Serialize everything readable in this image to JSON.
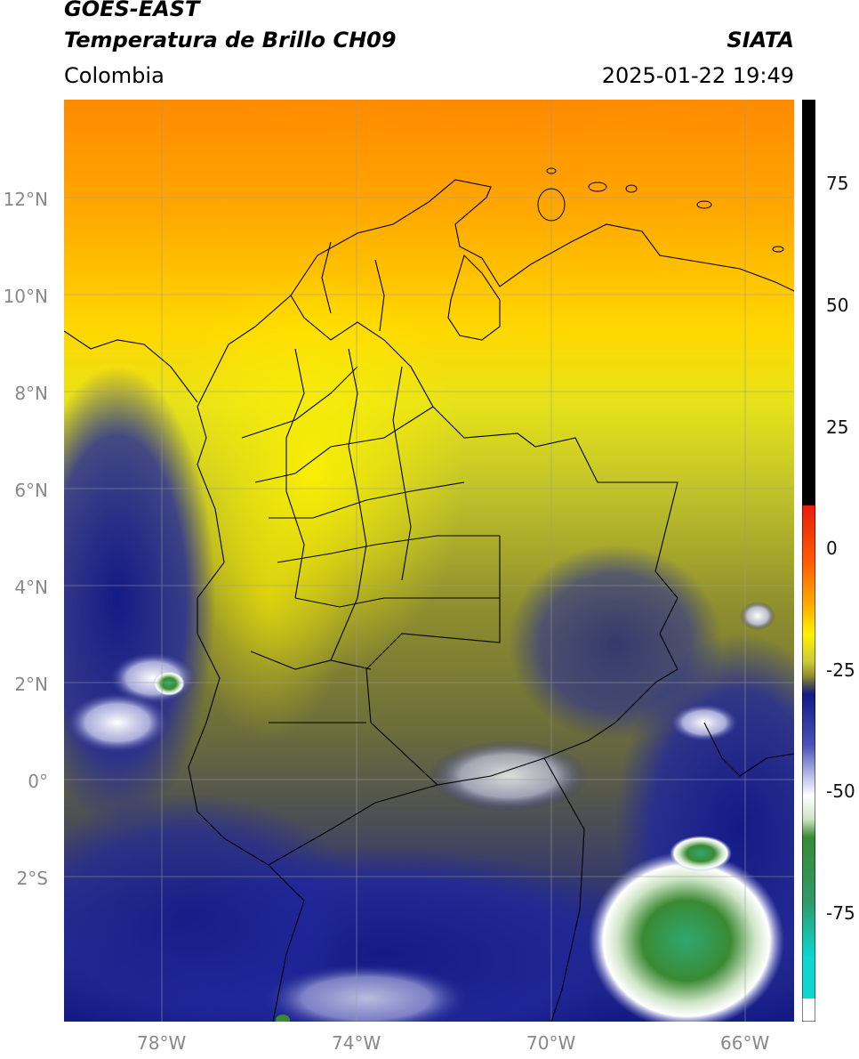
{
  "header": {
    "satellite": "GOES-EAST",
    "product": "Temperatura de Brillo CH09",
    "agency": "SIATA",
    "region": "Colombia",
    "timestamp": "2025-01-22 19:49"
  },
  "map": {
    "lat_labels": [
      "12°N",
      "10°N",
      "8°N",
      "6°N",
      "4°N",
      "2°N",
      "0°",
      "2°S"
    ],
    "lon_labels": [
      "78°W",
      "74°W",
      "70°W",
      "66°W"
    ],
    "lon_range": [
      -80,
      -65
    ],
    "lat_range": [
      -5,
      14
    ]
  },
  "colorbar": {
    "ticks": [
      "75",
      "50",
      "25",
      "0",
      "-25",
      "-50",
      "-75"
    ],
    "colors": {
      "black": "#000000",
      "red": "#e81c0c",
      "orange": "#ff8a00",
      "yellow": "#fff200",
      "olive": "#8f8f2e",
      "gray": "#4d4f55",
      "navy": "#141a86",
      "white": "#ffffff",
      "green": "#3a8a34",
      "teal": "#0fd6cf"
    }
  }
}
